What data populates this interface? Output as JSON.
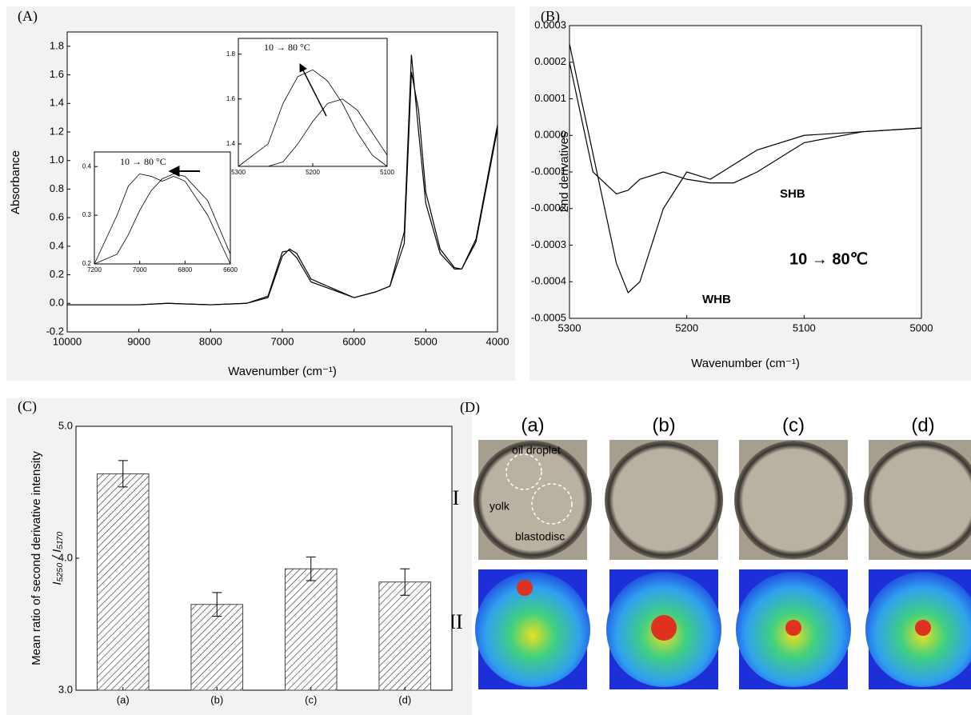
{
  "chart_data": [
    {
      "type": "line",
      "panel_label": "(A)",
      "x_label": "Wavenumber (cm⁻¹)",
      "y_label": "Absorbance",
      "xlim": [
        10000,
        4000
      ],
      "ylim": [
        -0.2,
        1.9
      ],
      "xticks": [
        10000,
        9000,
        8000,
        7000,
        6000,
        5000,
        4000
      ],
      "yticks": [
        {
          "value": -0.2,
          "label": "-0.2"
        },
        {
          "value": 0,
          "label": "0.0"
        },
        0.2,
        0.4,
        0.6,
        0.8,
        {
          "value": 1,
          "label": "1.0"
        },
        1.2,
        1.4,
        1.6,
        1.8
      ],
      "x": [
        10000,
        9000,
        8600,
        8000,
        7500,
        7200,
        7000,
        6900,
        6800,
        6600,
        6000,
        5700,
        5500,
        5300,
        5200,
        5100,
        5000,
        4800,
        4600,
        4500,
        4300,
        4000
      ],
      "series": [
        {
          "color": "#000000",
          "values": [
            -0.01,
            -0.01,
            0.0,
            -0.01,
            0.0,
            0.05,
            0.36,
            0.37,
            0.32,
            0.15,
            0.04,
            0.08,
            0.12,
            0.5,
            1.74,
            1.2,
            0.7,
            0.35,
            0.24,
            0.24,
            0.45,
            1.25
          ]
        },
        {
          "color": "#000000",
          "values": [
            -0.01,
            -0.01,
            0.0,
            -0.01,
            0.0,
            0.04,
            0.33,
            0.38,
            0.35,
            0.17,
            0.04,
            0.08,
            0.12,
            0.42,
            1.62,
            1.35,
            0.78,
            0.38,
            0.25,
            0.24,
            0.43,
            1.22
          ]
        }
      ]
    },
    {
      "type": "line",
      "annotation": "10 → 80 °C",
      "xlim": [
        7200,
        6600
      ],
      "ylim": [
        0.2,
        0.43
      ],
      "xticks": [
        7200,
        7000,
        6800,
        6600
      ],
      "yticks": [
        0.2,
        0.3,
        0.4
      ],
      "x": [
        7200,
        7100,
        7050,
        7000,
        6950,
        6900,
        6850,
        6800,
        6700,
        6600
      ],
      "series": [
        {
          "color": "#000000",
          "values": [
            0.2,
            0.3,
            0.36,
            0.385,
            0.38,
            0.37,
            0.38,
            0.37,
            0.3,
            0.2
          ]
        },
        {
          "color": "#000000",
          "values": [
            0.2,
            0.22,
            0.26,
            0.31,
            0.35,
            0.375,
            0.385,
            0.38,
            0.33,
            0.22
          ]
        }
      ]
    },
    {
      "type": "line",
      "annotation": "10 → 80 °C",
      "xlim": [
        5300,
        5100
      ],
      "ylim": [
        1.3,
        1.87
      ],
      "xticks": [
        5300,
        5200,
        5100
      ],
      "yticks": [
        1.4,
        1.6,
        1.8
      ],
      "x": [
        5300,
        5260,
        5240,
        5220,
        5200,
        5180,
        5160,
        5140,
        5120,
        5100
      ],
      "series": [
        {
          "color": "#000000",
          "values": [
            1.3,
            1.4,
            1.58,
            1.7,
            1.73,
            1.68,
            1.58,
            1.45,
            1.35,
            1.3
          ]
        },
        {
          "color": "#000000",
          "values": [
            1.3,
            1.3,
            1.32,
            1.4,
            1.5,
            1.58,
            1.6,
            1.55,
            1.45,
            1.35
          ]
        }
      ]
    },
    {
      "type": "line",
      "panel_label": "(B)",
      "x_label": "Wavenumber (cm⁻¹)",
      "y_label": "2nd derivatives",
      "annotations": [
        "SHB",
        "WHB",
        "10 → 80℃"
      ],
      "xlim": [
        5300,
        5000
      ],
      "ylim": [
        -0.0005,
        0.0003
      ],
      "xticks": [
        5300,
        5200,
        5100,
        5000
      ],
      "yticks": [
        -0.0005,
        -0.0004,
        -0.0003,
        -0.0002,
        -0.0001,
        {
          "value": 0,
          "label": "0.0000"
        },
        0.0001,
        0.0002,
        0.0003
      ],
      "x": [
        5300,
        5280,
        5260,
        5250,
        5240,
        5220,
        5200,
        5180,
        5160,
        5140,
        5100,
        5050,
        5000
      ],
      "series": [
        {
          "color": "#000000",
          "values": [
            0.00025,
            -5e-05,
            -0.00035,
            -0.00043,
            -0.0004,
            -0.0002,
            -0.0001,
            -0.00012,
            -8e-05,
            -4e-05,
            0.0,
            1e-05,
            2e-05
          ]
        },
        {
          "color": "#000000",
          "values": [
            0.0002,
            -0.0001,
            -0.00016,
            -0.00015,
            -0.00012,
            -0.0001,
            -0.00012,
            -0.00013,
            -0.00013,
            -0.0001,
            -2e-05,
            1e-05,
            2e-05
          ]
        }
      ]
    },
    {
      "type": "bar",
      "panel_label": "(C)",
      "y_label": "Mean ratio of second derivative intensity",
      "y_label_2": "I₅₂₅₀ / I₅₁₇₀",
      "categories": [
        "(a)",
        "(b)",
        "(c)",
        "(d)"
      ],
      "values": [
        4.64,
        3.65,
        3.92,
        3.82
      ],
      "errors": [
        0.1,
        0.09,
        0.09,
        0.1
      ],
      "color": "#444444",
      "ylim": [
        3,
        5
      ],
      "yticks": [
        {
          "value": 3,
          "label": "3.0"
        },
        {
          "value": 4,
          "label": "4.0"
        },
        {
          "value": 5,
          "label": "5.0"
        }
      ]
    }
  ],
  "image_panel": {
    "panel_label": "(D)",
    "columns": [
      "(a)",
      "(b)",
      "(c)",
      "(d)"
    ],
    "rows": [
      "I",
      "II"
    ],
    "annotations": [
      "oil droplet",
      "yolk",
      "blastodisc"
    ]
  }
}
